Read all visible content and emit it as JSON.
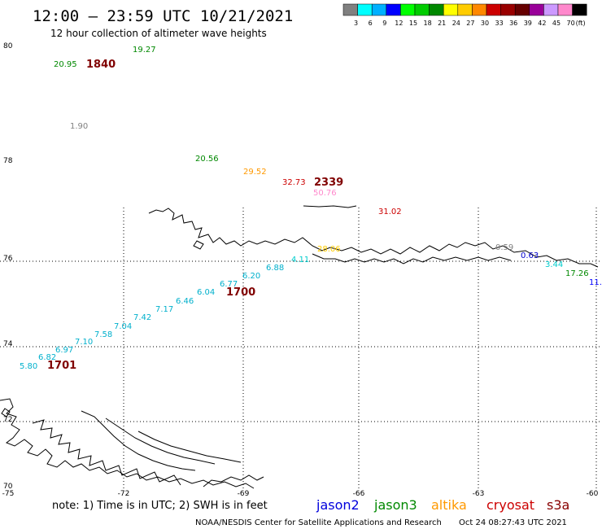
{
  "title": "12:00 — 23:59 UTC 10/21/2021",
  "subtitle": "12 hour collection of altimeter wave heights",
  "legend": {
    "colors": [
      "#808080",
      "#00ffff",
      "#00b0ff",
      "#0000ff",
      "#00ff00",
      "#00cc00",
      "#008800",
      "#ffff00",
      "#ffcc00",
      "#ff8800",
      "#cc0000",
      "#990000",
      "#660000",
      "#990099",
      "#cc99ff",
      "#ff88cc",
      "#000000"
    ],
    "labels": [
      "3",
      "6",
      "9",
      "12",
      "15",
      "18",
      "21",
      "24",
      "27",
      "30",
      "33",
      "36",
      "39",
      "42",
      "45",
      "70",
      "(ft)"
    ]
  },
  "axes": {
    "lat_labels": [
      "80",
      "78",
      "76",
      "74",
      "72",
      "70"
    ],
    "lon_labels": [
      "-75",
      "-72",
      "-69",
      "-66",
      "-63",
      "-60"
    ]
  },
  "labels": [
    {
      "text": "19.27",
      "color": "#008800"
    },
    {
      "text": "20.95",
      "color": "#008800"
    },
    {
      "text": "1840",
      "color": "#800000",
      "kind": "time"
    },
    {
      "text": "1.90",
      "color": "#808080"
    },
    {
      "text": "20.56",
      "color": "#008800"
    },
    {
      "text": "29.52",
      "color": "#ff9900"
    },
    {
      "text": "32.73",
      "color": "#cc0000"
    },
    {
      "text": "2339",
      "color": "#800000",
      "kind": "time"
    },
    {
      "text": "50.76",
      "color": "#ff88cc"
    },
    {
      "text": "31.02",
      "color": "#cc0000"
    },
    {
      "text": "28.06",
      "color": "#ffcc00"
    },
    {
      "text": "0.59",
      "color": "#808080"
    },
    {
      "text": "0.63",
      "color": "#0000cc"
    },
    {
      "text": "3.44",
      "color": "#00cccc"
    },
    {
      "text": "17.26",
      "color": "#008800"
    },
    {
      "text": "11.",
      "color": "#0000ff"
    },
    {
      "text": "4.11",
      "color": "#00cccc"
    },
    {
      "text": "6.88",
      "color": "#00b0cc"
    },
    {
      "text": "6.20",
      "color": "#00b0cc"
    },
    {
      "text": "6.77",
      "color": "#00b0cc"
    },
    {
      "text": "1700",
      "color": "#800000",
      "kind": "time"
    },
    {
      "text": "6.04",
      "color": "#00b0cc"
    },
    {
      "text": "6.46",
      "color": "#00b0cc"
    },
    {
      "text": "7.17",
      "color": "#00b0cc"
    },
    {
      "text": "7.42",
      "color": "#00b0cc"
    },
    {
      "text": "7.04",
      "color": "#00b0cc"
    },
    {
      "text": "7.58",
      "color": "#00b0cc"
    },
    {
      "text": "7.10",
      "color": "#00b0cc"
    },
    {
      "text": "6.97",
      "color": "#00b0cc"
    },
    {
      "text": "6.82",
      "color": "#00b0cc"
    },
    {
      "text": "5.80",
      "color": "#00b0cc"
    },
    {
      "text": "1701",
      "color": "#800000",
      "kind": "time"
    }
  ],
  "note": "note:  1) Time is in UTC;  2) SWH is in feet",
  "satellites": [
    {
      "name": "jason2",
      "color": "#0000dd"
    },
    {
      "name": "jason3",
      "color": "#008800"
    },
    {
      "name": "altika",
      "color": "#ff9900"
    },
    {
      "name": "cryosat",
      "color": "#cc0000"
    },
    {
      "name": "s3a",
      "color": "#880000"
    }
  ],
  "credit": "NOAA/NESDIS Center for Satellite Applications and Research",
  "timestamp": "Oct 24 08:27:43 UTC 2021"
}
